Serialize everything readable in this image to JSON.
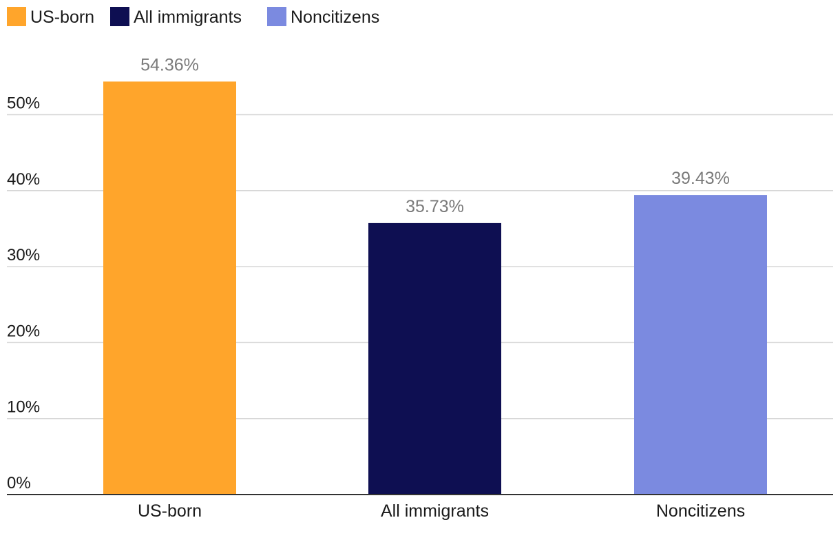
{
  "chart_data": {
    "type": "bar",
    "title": "",
    "xlabel": "",
    "ylabel": "",
    "categories": [
      "US-born",
      "All immigrants",
      "Noncitizens"
    ],
    "values": [
      54.36,
      35.73,
      39.43
    ],
    "data_labels": [
      "54.36%",
      "35.73%",
      "39.43%"
    ],
    "colors": [
      "#FFA52B",
      "#0E0F52",
      "#7B8AE0"
    ],
    "ylim": [
      0,
      55
    ],
    "yticks": [
      0,
      10,
      20,
      30,
      40,
      50
    ],
    "ytick_labels": [
      "0%",
      "10%",
      "20%",
      "30%",
      "40%",
      "50%"
    ],
    "grid": true,
    "legend": {
      "placement": "top-left",
      "entries": [
        {
          "label": "US-born",
          "color": "#FFA52B"
        },
        {
          "label": "All immigrants",
          "color": "#0E0F52"
        },
        {
          "label": "Noncitizens",
          "color": "#7B8AE0"
        }
      ]
    }
  }
}
